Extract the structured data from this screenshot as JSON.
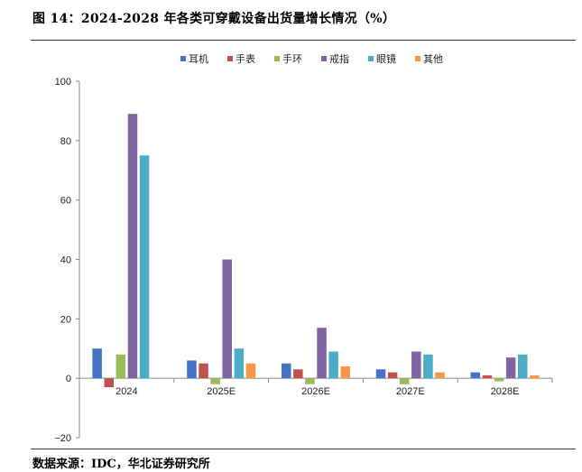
{
  "figure": {
    "title": "图 14：2024-2028 年各类可穿戴设备出货量增长情况（%）",
    "source": "数据来源：IDC，华北证券研究所"
  },
  "chart_data": {
    "type": "bar",
    "categories": [
      "2024",
      "2025E",
      "2026E",
      "2027E",
      "2028E"
    ],
    "series": [
      {
        "name": "耳机",
        "color": "#4472C4",
        "values": [
          10,
          6,
          5,
          3,
          2
        ]
      },
      {
        "name": "手表",
        "color": "#C0504D",
        "values": [
          -3,
          5,
          3,
          2,
          1
        ]
      },
      {
        "name": "手环",
        "color": "#9BBB59",
        "values": [
          8,
          -2,
          -2,
          -2,
          -1
        ]
      },
      {
        "name": "戒指",
        "color": "#8064A2",
        "values": [
          89,
          40,
          17,
          9,
          7
        ]
      },
      {
        "name": "眼镜",
        "color": "#4BACC6",
        "values": [
          75,
          10,
          9,
          8,
          8
        ]
      },
      {
        "name": "其他",
        "color": "#F79646",
        "values": [
          0,
          5,
          4,
          2,
          1
        ]
      }
    ],
    "ylim": [
      -20,
      100
    ],
    "yticks": [
      -20,
      0,
      20,
      40,
      60,
      80,
      100
    ],
    "grid": false,
    "legend": "top-center"
  }
}
